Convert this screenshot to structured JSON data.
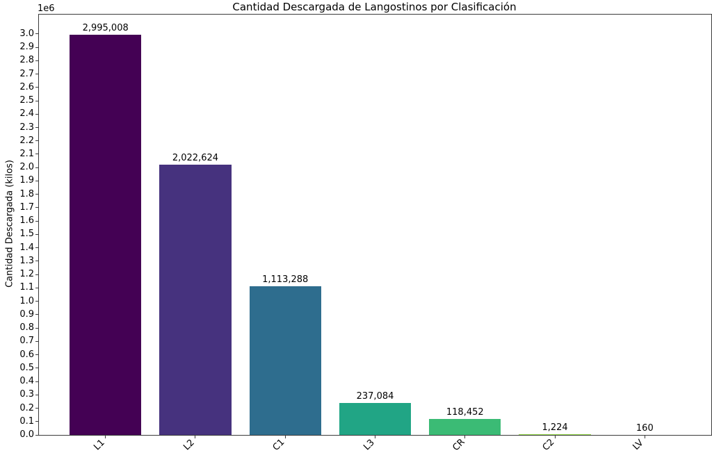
{
  "chart_data": {
    "type": "bar",
    "title": "Cantidad Descargada de Langostinos por Clasificación",
    "ylabel": "Cantidad Descargada (kilos)",
    "xlabel": "",
    "y_offset_label": "1e6",
    "categories": [
      "L1",
      "L2",
      "C1",
      "L3",
      "CR",
      "C2",
      "LV"
    ],
    "values": [
      2995008,
      2022624,
      1113288,
      237084,
      118452,
      1224,
      160
    ],
    "value_labels": [
      "2,995,008",
      "2,022,624",
      "1,113,288",
      "237,084",
      "118,452",
      "1,224",
      "160"
    ],
    "bar_colors": [
      "#440154",
      "#46327e",
      "#2e6d8e",
      "#21a585",
      "#3bbb75",
      "#90d743",
      "#fde725"
    ],
    "ylim": [
      0,
      3144758
    ],
    "ytick_step": 100000,
    "ytick_max": 3000000,
    "bar_width_units": 0.8,
    "x_margin_fraction": 0.05,
    "grid": false,
    "legend_position": "none",
    "axis_color": "#3a3a3a",
    "text_color": "#000000"
  }
}
